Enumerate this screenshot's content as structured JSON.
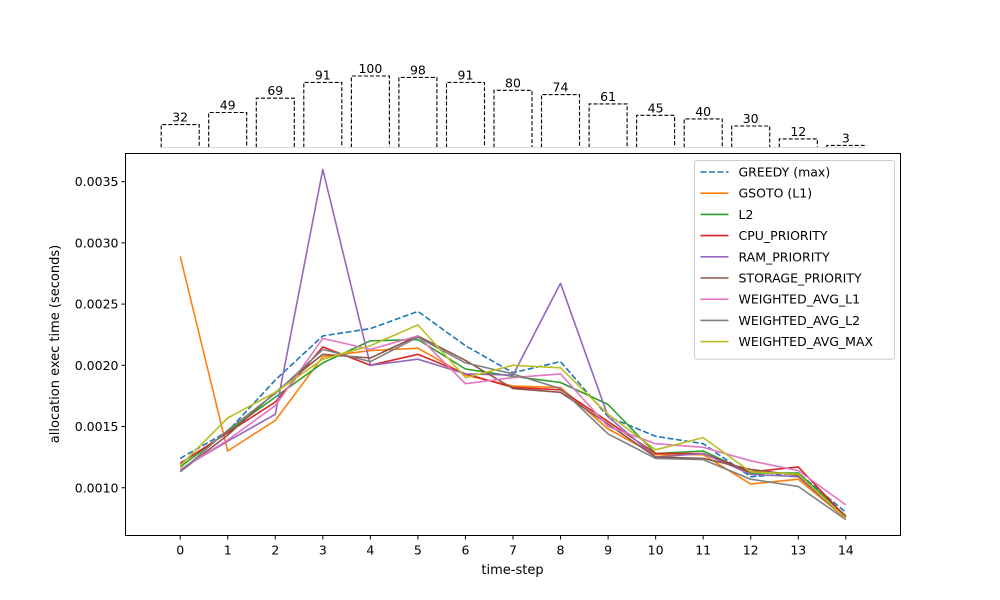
{
  "chart_data": [
    {
      "type": "bar",
      "categories": [
        0,
        1,
        2,
        3,
        4,
        5,
        6,
        7,
        8,
        9,
        10,
        11,
        12,
        13,
        14
      ],
      "values": [
        32,
        49,
        69,
        91,
        100,
        98,
        91,
        80,
        74,
        61,
        45,
        40,
        30,
        12,
        3
      ],
      "style": "dashed-outline",
      "ylim": [
        0,
        100
      ]
    },
    {
      "type": "line",
      "xlabel": "time-step",
      "ylabel": "allocation exec time (seconds)",
      "x": [
        0,
        1,
        2,
        3,
        4,
        5,
        6,
        7,
        8,
        9,
        10,
        11,
        12,
        13,
        14
      ],
      "xlim": [
        -1.15,
        15.15
      ],
      "ylim": [
        0.00061,
        0.00373
      ],
      "yticks": [
        0.001,
        0.0015,
        0.002,
        0.0025,
        0.003,
        0.0035
      ],
      "ytick_labels": [
        "0.0010",
        "0.0015",
        "0.0020",
        "0.0025",
        "0.0030",
        "0.0035"
      ],
      "legend_position": "top-right",
      "grid": false,
      "series": [
        {
          "name": "GREEDY (max)",
          "color": "#1f77b4",
          "dashed": true,
          "values": [
            0.00124,
            0.00146,
            0.00188,
            0.00224,
            0.0023,
            0.00244,
            0.00216,
            0.00194,
            0.00203,
            0.00158,
            0.00142,
            0.00136,
            0.00109,
            0.00112,
            0.0008
          ]
        },
        {
          "name": "GSOTO (L1)",
          "color": "#ff7f0e",
          "dashed": false,
          "values": [
            0.00289,
            0.0013,
            0.00155,
            0.00207,
            0.00212,
            0.00214,
            0.00192,
            0.00183,
            0.00182,
            0.00148,
            0.00127,
            0.00127,
            0.00103,
            0.00107,
            0.00075
          ]
        },
        {
          "name": "L2",
          "color": "#2ca02c",
          "dashed": false,
          "values": [
            0.00117,
            0.00146,
            0.00174,
            0.00202,
            0.0022,
            0.00221,
            0.00197,
            0.00191,
            0.00186,
            0.00168,
            0.00128,
            0.0013,
            0.00112,
            0.00112,
            0.00077
          ]
        },
        {
          "name": "CPU_PRIORITY",
          "color": "#d62728",
          "dashed": false,
          "values": [
            0.0012,
            0.00145,
            0.0017,
            0.00215,
            0.002,
            0.00209,
            0.00193,
            0.00182,
            0.0018,
            0.00154,
            0.00128,
            0.00128,
            0.00113,
            0.00117,
            0.00076
          ]
        },
        {
          "name": "RAM_PRIORITY",
          "color": "#9467bd",
          "dashed": false,
          "values": [
            0.00115,
            0.00138,
            0.0016,
            0.0036,
            0.002,
            0.00205,
            0.00193,
            0.00192,
            0.00267,
            0.00158,
            0.00125,
            0.00128,
            0.00111,
            0.00109,
            0.00075
          ]
        },
        {
          "name": "STORAGE_PRIORITY",
          "color": "#8c564b",
          "dashed": false,
          "values": [
            0.00113,
            0.00143,
            0.00178,
            0.00209,
            0.00206,
            0.00224,
            0.00204,
            0.00181,
            0.00178,
            0.00152,
            0.00125,
            0.00124,
            0.00115,
            0.0011,
            0.00075
          ]
        },
        {
          "name": "WEIGHTED_AVG_L1",
          "color": "#e377c2",
          "dashed": false,
          "values": [
            0.00115,
            0.00139,
            0.00167,
            0.00222,
            0.00213,
            0.00224,
            0.00185,
            0.0019,
            0.00193,
            0.0015,
            0.00136,
            0.00133,
            0.00122,
            0.00114,
            0.00086
          ]
        },
        {
          "name": "WEIGHTED_AVG_L2",
          "color": "#7f7f7f",
          "dashed": false,
          "values": [
            0.00113,
            0.00147,
            0.00177,
            0.00213,
            0.00203,
            0.00223,
            0.00202,
            0.00193,
            0.00181,
            0.00144,
            0.00124,
            0.00123,
            0.00107,
            0.00101,
            0.00074
          ]
        },
        {
          "name": "WEIGHTED_AVG_MAX",
          "color": "#bcbd22",
          "dashed": false,
          "values": [
            0.00118,
            0.00157,
            0.00178,
            0.00205,
            0.00216,
            0.00233,
            0.0019,
            0.002,
            0.00198,
            0.0016,
            0.00131,
            0.00141,
            0.00113,
            0.00111,
            0.00075
          ]
        }
      ]
    }
  ]
}
